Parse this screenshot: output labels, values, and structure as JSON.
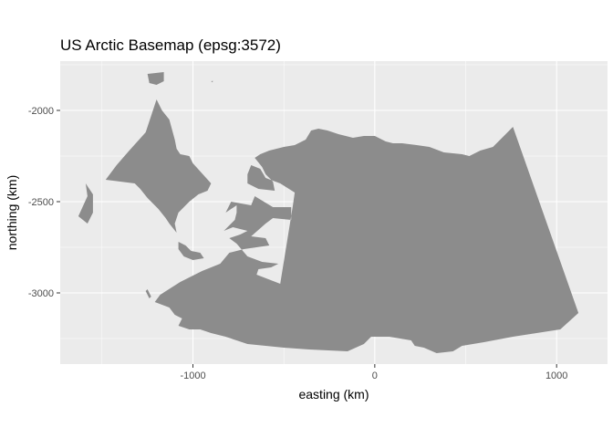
{
  "chart_data": {
    "type": "map",
    "title": "US Arctic Basemap (epsg:3572)",
    "xlabel": "easting (km)",
    "ylabel": "northing (km)",
    "xlim": [
      -1730,
      1280
    ],
    "ylim": [
      -3390,
      -1730
    ],
    "x_ticks": [
      {
        "value": -1000,
        "label": "-1000"
      },
      {
        "value": 0,
        "label": "0"
      },
      {
        "value": 1000,
        "label": "1000"
      }
    ],
    "y_ticks": [
      {
        "value": -2000,
        "label": "-2000"
      },
      {
        "value": -2500,
        "label": "-2500"
      },
      {
        "value": -3000,
        "label": "-3000"
      }
    ],
    "x_minor": [
      -1500,
      -500,
      500
    ],
    "y_minor": [
      -1750,
      -2250,
      -2750,
      -3250
    ],
    "grid": true,
    "colors": {
      "panel": "#ebebeb",
      "land": "#8c8c8c",
      "grid": "#ffffff"
    },
    "land": [
      {
        "name": "alaska-mainland",
        "coords": [
          [
            -520,
            -2950
          ],
          [
            -650,
            -2900
          ],
          [
            -640,
            -2870
          ],
          [
            -570,
            -2860
          ],
          [
            -530,
            -2840
          ],
          [
            -620,
            -2830
          ],
          [
            -700,
            -2800
          ],
          [
            -760,
            -2730
          ],
          [
            -800,
            -2700
          ],
          [
            -740,
            -2680
          ],
          [
            -700,
            -2660
          ],
          [
            -780,
            -2640
          ],
          [
            -830,
            -2660
          ],
          [
            -770,
            -2600
          ],
          [
            -760,
            -2560
          ],
          [
            -760,
            -2520
          ],
          [
            -820,
            -2560
          ],
          [
            -790,
            -2500
          ],
          [
            -680,
            -2520
          ],
          [
            -660,
            -2470
          ],
          [
            -560,
            -2530
          ],
          [
            -460,
            -2530
          ],
          [
            -460,
            -2600
          ],
          [
            -560,
            -2590
          ],
          [
            -600,
            -2620
          ],
          [
            -680,
            -2690
          ],
          [
            -600,
            -2700
          ],
          [
            -580,
            -2740
          ],
          [
            -720,
            -2760
          ],
          [
            -800,
            -2780
          ],
          [
            -850,
            -2840
          ],
          [
            -950,
            -2880
          ],
          [
            -1070,
            -2940
          ],
          [
            -1180,
            -3010
          ],
          [
            -1210,
            -3050
          ],
          [
            -1130,
            -3080
          ],
          [
            -1100,
            -3120
          ],
          [
            -1060,
            -3140
          ],
          [
            -1080,
            -3180
          ],
          [
            -1020,
            -3200
          ],
          [
            -960,
            -3200
          ],
          [
            -900,
            -3220
          ],
          [
            -820,
            -3240
          ],
          [
            -700,
            -3280
          ],
          [
            -500,
            -3300
          ],
          [
            -360,
            -3310
          ],
          [
            -150,
            -3320
          ],
          [
            -60,
            -3280
          ],
          [
            -20,
            -3240
          ],
          [
            80,
            -3240
          ],
          [
            200,
            -3260
          ],
          [
            220,
            -3290
          ],
          [
            270,
            -3300
          ],
          [
            340,
            -3330
          ],
          [
            430,
            -3320
          ],
          [
            480,
            -3290
          ],
          [
            600,
            -3270
          ],
          [
            760,
            -3240
          ],
          [
            1020,
            -3200
          ],
          [
            1120,
            -3110
          ],
          [
            760,
            -2090
          ],
          [
            720,
            -2130
          ],
          [
            650,
            -2200
          ],
          [
            580,
            -2220
          ],
          [
            520,
            -2250
          ],
          [
            480,
            -2240
          ],
          [
            380,
            -2230
          ],
          [
            300,
            -2200
          ],
          [
            230,
            -2190
          ],
          [
            150,
            -2180
          ],
          [
            100,
            -2180
          ],
          [
            60,
            -2170
          ],
          [
            0,
            -2140
          ],
          [
            -60,
            -2140
          ],
          [
            -120,
            -2150
          ],
          [
            -200,
            -2130
          ],
          [
            -260,
            -2110
          ],
          [
            -310,
            -2100
          ],
          [
            -350,
            -2110
          ],
          [
            -380,
            -2160
          ],
          [
            -440,
            -2190
          ],
          [
            -500,
            -2200
          ],
          [
            -580,
            -2220
          ],
          [
            -630,
            -2240
          ],
          [
            -660,
            -2260
          ],
          [
            -620,
            -2310
          ],
          [
            -600,
            -2350
          ],
          [
            -560,
            -2390
          ],
          [
            -550,
            -2440
          ],
          [
            -640,
            -2430
          ],
          [
            -700,
            -2400
          ],
          [
            -700,
            -2350
          ],
          [
            -680,
            -2300
          ],
          [
            -630,
            -2320
          ],
          [
            -600,
            -2370
          ],
          [
            -520,
            -2400
          ],
          [
            -440,
            -2450
          ],
          [
            -450,
            -2520
          ],
          [
            -520,
            -2950
          ]
        ]
      },
      {
        "name": "chukotka-peninsula",
        "coords": [
          [
            -1480,
            -2380
          ],
          [
            -1420,
            -2300
          ],
          [
            -1350,
            -2220
          ],
          [
            -1260,
            -2120
          ],
          [
            -1200,
            -1940
          ],
          [
            -1170,
            -2000
          ],
          [
            -1130,
            -2050
          ],
          [
            -1100,
            -2160
          ],
          [
            -1090,
            -2210
          ],
          [
            -1070,
            -2240
          ],
          [
            -1020,
            -2250
          ],
          [
            -1000,
            -2290
          ],
          [
            -900,
            -2400
          ],
          [
            -920,
            -2440
          ],
          [
            -970,
            -2460
          ],
          [
            -1020,
            -2500
          ],
          [
            -1080,
            -2560
          ],
          [
            -1100,
            -2620
          ],
          [
            -1090,
            -2670
          ],
          [
            -1130,
            -2620
          ],
          [
            -1150,
            -2590
          ],
          [
            -1190,
            -2540
          ],
          [
            -1250,
            -2480
          ],
          [
            -1290,
            -2430
          ],
          [
            -1320,
            -2400
          ],
          [
            -1400,
            -2390
          ],
          [
            -1480,
            -2380
          ]
        ]
      },
      {
        "name": "wrangel-island",
        "coords": [
          [
            -1250,
            -1800
          ],
          [
            -1160,
            -1790
          ],
          [
            -1160,
            -1840
          ],
          [
            -1200,
            -1860
          ],
          [
            -1240,
            -1850
          ],
          [
            -1250,
            -1800
          ]
        ]
      },
      {
        "name": "small-islet-north",
        "coords": [
          [
            -900,
            -1840
          ],
          [
            -890,
            -1838
          ],
          [
            -892,
            -1846
          ],
          [
            -900,
            -1840
          ]
        ]
      },
      {
        "name": "western-cape",
        "coords": [
          [
            -1590,
            -2400
          ],
          [
            -1550,
            -2460
          ],
          [
            -1550,
            -2560
          ],
          [
            -1580,
            -2620
          ],
          [
            -1630,
            -2580
          ],
          [
            -1580,
            -2470
          ],
          [
            -1590,
            -2400
          ]
        ]
      },
      {
        "name": "st-lawrence-island",
        "coords": [
          [
            -1080,
            -2720
          ],
          [
            -1040,
            -2740
          ],
          [
            -1010,
            -2770
          ],
          [
            -960,
            -2780
          ],
          [
            -940,
            -2810
          ],
          [
            -1000,
            -2820
          ],
          [
            -1050,
            -2800
          ],
          [
            -1080,
            -2760
          ],
          [
            -1080,
            -2720
          ]
        ]
      },
      {
        "name": "st-matthew-island",
        "coords": [
          [
            -1250,
            -2980
          ],
          [
            -1230,
            -3020
          ],
          [
            -1240,
            -3030
          ],
          [
            -1260,
            -2990
          ],
          [
            -1250,
            -2980
          ]
        ]
      }
    ]
  }
}
